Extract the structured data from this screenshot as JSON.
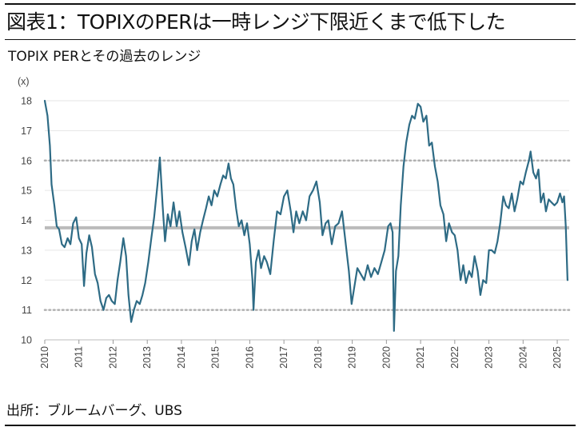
{
  "figure": {
    "title": "図表1：TOPIXのPERは一時レンジ下限近くまで低下した",
    "source": "出所：ブルームバーグ、UBS"
  },
  "chart_data": {
    "type": "line",
    "title": "TOPIX PERとその過去のレンジ",
    "ylabel": "(x)",
    "ylim": [
      10,
      18
    ],
    "xlim": [
      2010,
      2025.35
    ],
    "yticks": [
      "10",
      "11",
      "12",
      "13",
      "14",
      "15",
      "16",
      "17",
      "18"
    ],
    "xticks": [
      "2010",
      "2011",
      "2012",
      "2013",
      "2014",
      "2015",
      "2016",
      "2017",
      "2018",
      "2019",
      "2020",
      "2021",
      "2022",
      "2023",
      "2024",
      "2025"
    ],
    "grid": "horizontal",
    "colors": {
      "series": "#2e6b85",
      "reference": "#bbbbbb",
      "band": "#b0b0b0",
      "grid": "#e6e6e6"
    },
    "reference_lines": [
      {
        "value": 13.75,
        "style": "solid"
      },
      {
        "value": 16.0,
        "style": "dotted"
      },
      {
        "value": 11.0,
        "style": "dotted"
      }
    ],
    "series": [
      {
        "x": [
          2010.0,
          2010.08,
          2010.15,
          2010.2,
          2010.28,
          2010.35,
          2010.42,
          2010.5,
          2010.58,
          2010.67,
          2010.75,
          2010.83,
          2010.92,
          2011.0,
          2011.08,
          2011.15,
          2011.22,
          2011.3,
          2011.38,
          2011.47,
          2011.55,
          2011.63,
          2011.72,
          2011.8,
          2011.88,
          2011.96,
          2012.05,
          2012.13,
          2012.21,
          2012.3,
          2012.38,
          2012.45,
          2012.53,
          2012.61,
          2012.69,
          2012.78,
          2012.86,
          2012.94,
          2013.03,
          2013.12,
          2013.2,
          2013.3,
          2013.37,
          2013.45,
          2013.52,
          2013.6,
          2013.68,
          2013.77,
          2013.86,
          2013.94,
          2014.03,
          2014.12,
          2014.22,
          2014.3,
          2014.38,
          2014.46,
          2014.55,
          2014.63,
          2014.72,
          2014.8,
          2014.88,
          2014.96,
          2015.05,
          2015.14,
          2015.22,
          2015.3,
          2015.38,
          2015.45,
          2015.52,
          2015.6,
          2015.68,
          2015.76,
          2015.84,
          2015.92,
          2016.0,
          2016.08,
          2016.11,
          2016.18,
          2016.26,
          2016.33,
          2016.42,
          2016.5,
          2016.6,
          2016.7,
          2016.8,
          2016.9,
          2017.0,
          2017.1,
          2017.2,
          2017.28,
          2017.36,
          2017.45,
          2017.55,
          2017.65,
          2017.75,
          2017.85,
          2017.95,
          2018.05,
          2018.13,
          2018.22,
          2018.3,
          2018.4,
          2018.5,
          2018.6,
          2018.7,
          2018.8,
          2018.9,
          2018.98,
          2019.05,
          2019.15,
          2019.25,
          2019.35,
          2019.45,
          2019.55,
          2019.65,
          2019.75,
          2019.85,
          2019.95,
          2020.05,
          2020.12,
          2020.18,
          2020.22,
          2020.28,
          2020.35,
          2020.42,
          2020.5,
          2020.58,
          2020.67,
          2020.75,
          2020.83,
          2020.92,
          2021.0,
          2021.08,
          2021.17,
          2021.25,
          2021.33,
          2021.42,
          2021.5,
          2021.58,
          2021.67,
          2021.75,
          2021.83,
          2021.92,
          2022.0,
          2022.08,
          2022.17,
          2022.25,
          2022.33,
          2022.42,
          2022.5,
          2022.58,
          2022.67,
          2022.75,
          2022.83,
          2022.92,
          2023.0,
          2023.08,
          2023.17,
          2023.25,
          2023.33,
          2023.42,
          2023.5,
          2023.58,
          2023.67,
          2023.75,
          2023.83,
          2023.92,
          2024.0,
          2024.08,
          2024.17,
          2024.22,
          2024.3,
          2024.38,
          2024.45,
          2024.52,
          2024.6,
          2024.67,
          2024.75,
          2024.83,
          2024.92,
          2025.0,
          2025.08,
          2025.15,
          2025.2,
          2025.25,
          2025.3
        ],
        "values": [
          18.0,
          17.5,
          16.5,
          15.2,
          14.5,
          13.8,
          13.7,
          13.2,
          13.1,
          13.4,
          13.2,
          13.9,
          14.1,
          13.4,
          13.2,
          11.8,
          12.9,
          13.5,
          13.1,
          12.2,
          11.9,
          11.3,
          11.0,
          11.4,
          11.5,
          11.3,
          11.2,
          12.0,
          12.6,
          13.4,
          12.8,
          11.5,
          10.6,
          11.0,
          11.3,
          11.2,
          11.5,
          11.9,
          12.6,
          13.4,
          14.1,
          15.2,
          16.1,
          14.5,
          13.3,
          14.2,
          13.8,
          14.6,
          13.8,
          14.3,
          13.6,
          13.1,
          12.5,
          13.3,
          13.7,
          13.0,
          13.6,
          14.0,
          14.4,
          14.8,
          14.5,
          15.0,
          14.8,
          15.2,
          15.5,
          15.4,
          15.9,
          15.4,
          15.2,
          14.4,
          13.8,
          14.0,
          13.5,
          13.9,
          13.2,
          12.0,
          11.0,
          12.6,
          13.0,
          12.4,
          12.8,
          12.6,
          12.2,
          13.3,
          14.3,
          14.2,
          14.8,
          15.0,
          14.3,
          13.6,
          14.3,
          13.9,
          14.3,
          14.0,
          14.8,
          15.0,
          15.3,
          14.6,
          13.5,
          13.9,
          14.0,
          13.2,
          13.8,
          13.9,
          14.3,
          13.3,
          12.3,
          11.2,
          11.7,
          12.4,
          12.2,
          12.0,
          12.5,
          12.1,
          12.4,
          12.2,
          12.6,
          13.0,
          13.8,
          13.9,
          13.6,
          10.3,
          12.3,
          12.8,
          14.5,
          15.8,
          16.6,
          17.2,
          17.5,
          17.4,
          17.9,
          17.8,
          17.3,
          17.5,
          16.5,
          16.6,
          15.8,
          15.3,
          14.5,
          14.2,
          13.3,
          13.9,
          13.6,
          13.5,
          13.0,
          12.0,
          12.5,
          11.9,
          12.3,
          12.1,
          12.8,
          12.3,
          11.5,
          12.0,
          11.9,
          13.0,
          13.0,
          12.9,
          13.3,
          13.9,
          14.8,
          14.5,
          14.4,
          14.9,
          14.3,
          14.7,
          15.3,
          15.2,
          15.6,
          16.0,
          16.3,
          15.6,
          15.4,
          15.7,
          14.6,
          14.9,
          14.3,
          14.7,
          14.6,
          14.5,
          14.6,
          14.9,
          14.6,
          14.8,
          13.8,
          12.0
        ]
      }
    ]
  }
}
